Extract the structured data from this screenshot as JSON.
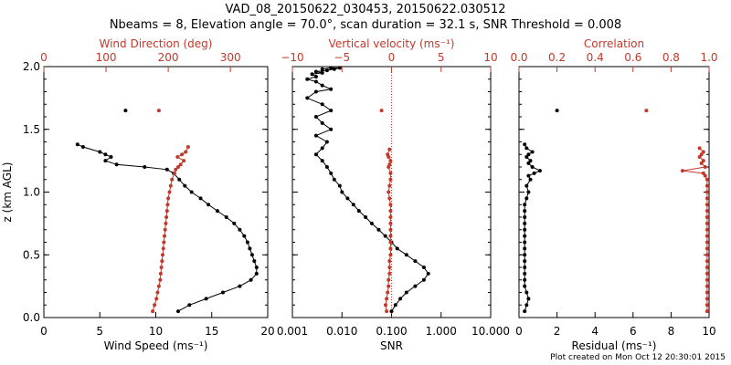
{
  "figure": {
    "title_line1": "VAD_08_20150622_030453, 20150622.030512",
    "title_line2": "Nbeams = 8, Elevation angle = 70.0°, scan duration = 32.1 s, SNR Threshold = 0.008",
    "footer": "Plot created on Mon Oct 12 20:30:01 2015",
    "colors": {
      "black": "#000000",
      "red": "#c0392b"
    }
  },
  "chart_data": [
    {
      "type": "line",
      "title": "",
      "ylabel": "z (km AGL)",
      "ylim": [
        0,
        2.0
      ],
      "yticks": [
        "0.0",
        "0.5",
        "1.0",
        "1.5",
        "2.0"
      ],
      "bottom_axis": {
        "label": "Wind Speed (ms⁻¹)",
        "range": [
          0,
          20
        ],
        "ticks": [
          "0",
          "5",
          "10",
          "15",
          "20"
        ],
        "scale": "linear"
      },
      "top_axis": {
        "label": "Wind Direction (deg)",
        "range": [
          0,
          360
        ],
        "ticks": [
          "0",
          "100",
          "200",
          "300"
        ],
        "tick_values": [
          0,
          100,
          200,
          300
        ],
        "scale": "linear"
      },
      "series": [
        {
          "name": "Wind Speed",
          "color": "#000000",
          "axis": "bottom",
          "connected": true,
          "x": [
            12,
            13,
            14.5,
            16,
            17.5,
            18.5,
            19,
            19,
            18.8,
            18.6,
            18.4,
            18.2,
            17.9,
            17.5,
            17,
            16.3,
            15.5,
            14.7,
            14,
            13.2,
            12.6,
            12.1,
            11.6,
            11,
            9,
            6.5,
            5.5,
            6,
            5.5,
            5,
            3.5,
            3
          ],
          "z": [
            0.05,
            0.1,
            0.15,
            0.2,
            0.25,
            0.3,
            0.35,
            0.4,
            0.45,
            0.5,
            0.55,
            0.6,
            0.65,
            0.7,
            0.75,
            0.8,
            0.85,
            0.9,
            0.95,
            1.0,
            1.05,
            1.1,
            1.15,
            1.18,
            1.2,
            1.22,
            1.25,
            1.28,
            1.3,
            1.32,
            1.36,
            1.38
          ]
        },
        {
          "name": "Wind Speed (isolated)",
          "color": "#000000",
          "axis": "bottom",
          "connected": false,
          "x": [
            7.3
          ],
          "z": [
            1.65
          ]
        },
        {
          "name": "Wind Direction",
          "color": "#c0392b",
          "axis": "top",
          "connected": true,
          "x": [
            175,
            178,
            181,
            183,
            185,
            187,
            188,
            189,
            190,
            191,
            192,
            193,
            194,
            195,
            196,
            197,
            198,
            199,
            200,
            202,
            204,
            206,
            210,
            212,
            216,
            220,
            225,
            215,
            222,
            228,
            232
          ],
          "z": [
            0.05,
            0.1,
            0.15,
            0.2,
            0.25,
            0.3,
            0.35,
            0.4,
            0.45,
            0.5,
            0.55,
            0.6,
            0.65,
            0.7,
            0.75,
            0.8,
            0.85,
            0.9,
            0.95,
            1.0,
            1.05,
            1.1,
            1.15,
            1.18,
            1.2,
            1.22,
            1.25,
            1.28,
            1.3,
            1.32,
            1.36
          ]
        },
        {
          "name": "Wind Direction (isolated)",
          "color": "#c0392b",
          "axis": "top",
          "connected": false,
          "x": [
            185
          ],
          "z": [
            1.65
          ]
        }
      ]
    },
    {
      "type": "line",
      "title": "",
      "ylabel": "",
      "ylim": [
        0,
        2.0
      ],
      "bottom_axis": {
        "label": "SNR",
        "range": [
          0.001,
          10
        ],
        "scale": "log",
        "ticks": [
          "0.001",
          "0.010",
          "0.100",
          "1.000",
          "10.000"
        ],
        "tick_values": [
          0.001,
          0.01,
          0.1,
          1,
          10
        ]
      },
      "top_axis": {
        "label": "Vertical velocity (ms⁻¹)",
        "range": [
          -10,
          10
        ],
        "scale": "linear",
        "ticks": [
          "−10",
          "−5",
          "0",
          "5",
          "10"
        ],
        "tick_values": [
          -10,
          -5,
          0,
          5,
          10
        ]
      },
      "reference_line": {
        "axis": "top",
        "value": 0,
        "style": "dotted",
        "color": "#c0392b"
      },
      "series": [
        {
          "name": "SNR",
          "color": "#000000",
          "axis": "bottom",
          "connected": true,
          "x": [
            0.1,
            0.12,
            0.15,
            0.2,
            0.3,
            0.45,
            0.55,
            0.45,
            0.3,
            0.2,
            0.13,
            0.1,
            0.075,
            0.055,
            0.04,
            0.03,
            0.022,
            0.017,
            0.013,
            0.01,
            0.009,
            0.007,
            0.006,
            0.005,
            0.004,
            0.003,
            0.004,
            0.005,
            0.003,
            0.006,
            0.004,
            0.003,
            0.006,
            0.004,
            0.002,
            0.003,
            0.006,
            0.004,
            0.003,
            0.002,
            0.003,
            0.0025,
            0.004,
            0.003,
            0.005,
            0.007,
            0.009,
            0.006,
            0.004
          ],
          "z": [
            0.05,
            0.1,
            0.15,
            0.2,
            0.25,
            0.3,
            0.35,
            0.4,
            0.45,
            0.5,
            0.55,
            0.6,
            0.65,
            0.7,
            0.75,
            0.8,
            0.85,
            0.9,
            0.95,
            1.0,
            1.05,
            1.1,
            1.15,
            1.2,
            1.25,
            1.3,
            1.35,
            1.4,
            1.45,
            1.5,
            1.55,
            1.6,
            1.65,
            1.7,
            1.75,
            1.8,
            1.82,
            1.85,
            1.88,
            1.9,
            1.92,
            1.94,
            1.95,
            1.96,
            1.97,
            1.98,
            1.99,
            1.99,
            1.98
          ]
        },
        {
          "name": "Vertical velocity",
          "color": "#c0392b",
          "axis": "top",
          "connected": true,
          "x": [
            -0.5,
            -0.6,
            -0.5,
            -0.4,
            -0.3,
            -0.3,
            -0.2,
            -0.2,
            -0.2,
            -0.1,
            -0.1,
            -0.1,
            -0.1,
            -0.1,
            -0.1,
            -0.1,
            -0.1,
            -0.1,
            -0.2,
            -0.3,
            -0.2,
            -0.1,
            -0.1,
            -0.3,
            -0.2,
            -0.1,
            -0.3,
            -0.4,
            -0.2
          ],
          "z": [
            0.05,
            0.1,
            0.15,
            0.2,
            0.25,
            0.3,
            0.35,
            0.4,
            0.45,
            0.5,
            0.55,
            0.6,
            0.65,
            0.7,
            0.75,
            0.8,
            0.85,
            0.9,
            0.95,
            1.0,
            1.05,
            1.1,
            1.15,
            1.2,
            1.22,
            1.25,
            1.28,
            1.3,
            1.34
          ]
        },
        {
          "name": "Vertical velocity (isolated)",
          "color": "#c0392b",
          "axis": "top",
          "connected": false,
          "x": [
            -1
          ],
          "z": [
            1.65
          ]
        }
      ]
    },
    {
      "type": "line",
      "title": "",
      "ylabel": "",
      "ylim": [
        0,
        2.0
      ],
      "bottom_axis": {
        "label": "Residual (ms⁻¹)",
        "range": [
          0,
          10
        ],
        "scale": "linear",
        "ticks": [
          "0",
          "2",
          "4",
          "6",
          "8",
          "10"
        ],
        "tick_values": [
          0,
          2,
          4,
          6,
          8,
          10
        ]
      },
      "top_axis": {
        "label": "Correlation",
        "range": [
          0,
          1.0
        ],
        "scale": "linear",
        "ticks": [
          "0.0",
          "0.2",
          "0.4",
          "0.6",
          "0.8",
          "1.0"
        ],
        "tick_values": [
          0,
          0.2,
          0.4,
          0.6,
          0.8,
          1.0
        ]
      },
      "series": [
        {
          "name": "Residual",
          "color": "#000000",
          "axis": "bottom",
          "connected": true,
          "x": [
            0.3,
            0.4,
            0.5,
            0.4,
            0.3,
            0.3,
            0.3,
            0.3,
            0.3,
            0.3,
            0.3,
            0.3,
            0.3,
            0.3,
            0.3,
            0.3,
            0.3,
            0.3,
            0.4,
            0.5,
            0.4,
            0.6,
            0.5,
            0.8,
            1.1,
            0.7,
            0.5,
            0.6,
            0.4,
            0.5,
            0.7,
            0.4,
            0.3
          ],
          "z": [
            0.05,
            0.1,
            0.15,
            0.2,
            0.25,
            0.3,
            0.35,
            0.4,
            0.45,
            0.5,
            0.55,
            0.6,
            0.65,
            0.7,
            0.75,
            0.8,
            0.85,
            0.9,
            0.95,
            1.0,
            1.05,
            1.1,
            1.13,
            1.15,
            1.17,
            1.2,
            1.23,
            1.25,
            1.28,
            1.3,
            1.32,
            1.35,
            1.38
          ]
        },
        {
          "name": "Residual (isolated)",
          "color": "#000000",
          "axis": "bottom",
          "connected": false,
          "x": [
            2.0
          ],
          "z": [
            1.65
          ]
        },
        {
          "name": "Correlation",
          "color": "#c0392b",
          "axis": "top",
          "connected": true,
          "x": [
            0.99,
            0.99,
            0.99,
            0.99,
            0.99,
            0.99,
            0.99,
            0.99,
            0.99,
            0.99,
            0.99,
            0.99,
            0.99,
            0.99,
            0.99,
            0.99,
            0.99,
            0.99,
            0.99,
            0.99,
            0.99,
            0.99,
            0.98,
            0.97,
            0.86,
            0.98,
            0.96,
            0.97,
            0.95,
            0.96,
            0.97,
            0.95
          ],
          "z": [
            0.05,
            0.1,
            0.15,
            0.2,
            0.25,
            0.3,
            0.35,
            0.4,
            0.45,
            0.5,
            0.55,
            0.6,
            0.65,
            0.7,
            0.75,
            0.8,
            0.85,
            0.9,
            0.95,
            1.0,
            1.05,
            1.1,
            1.13,
            1.15,
            1.17,
            1.2,
            1.23,
            1.25,
            1.28,
            1.3,
            1.32,
            1.35
          ]
        },
        {
          "name": "Correlation (isolated)",
          "color": "#c0392b",
          "axis": "top",
          "connected": false,
          "x": [
            0.67
          ],
          "z": [
            1.65
          ]
        }
      ]
    }
  ]
}
